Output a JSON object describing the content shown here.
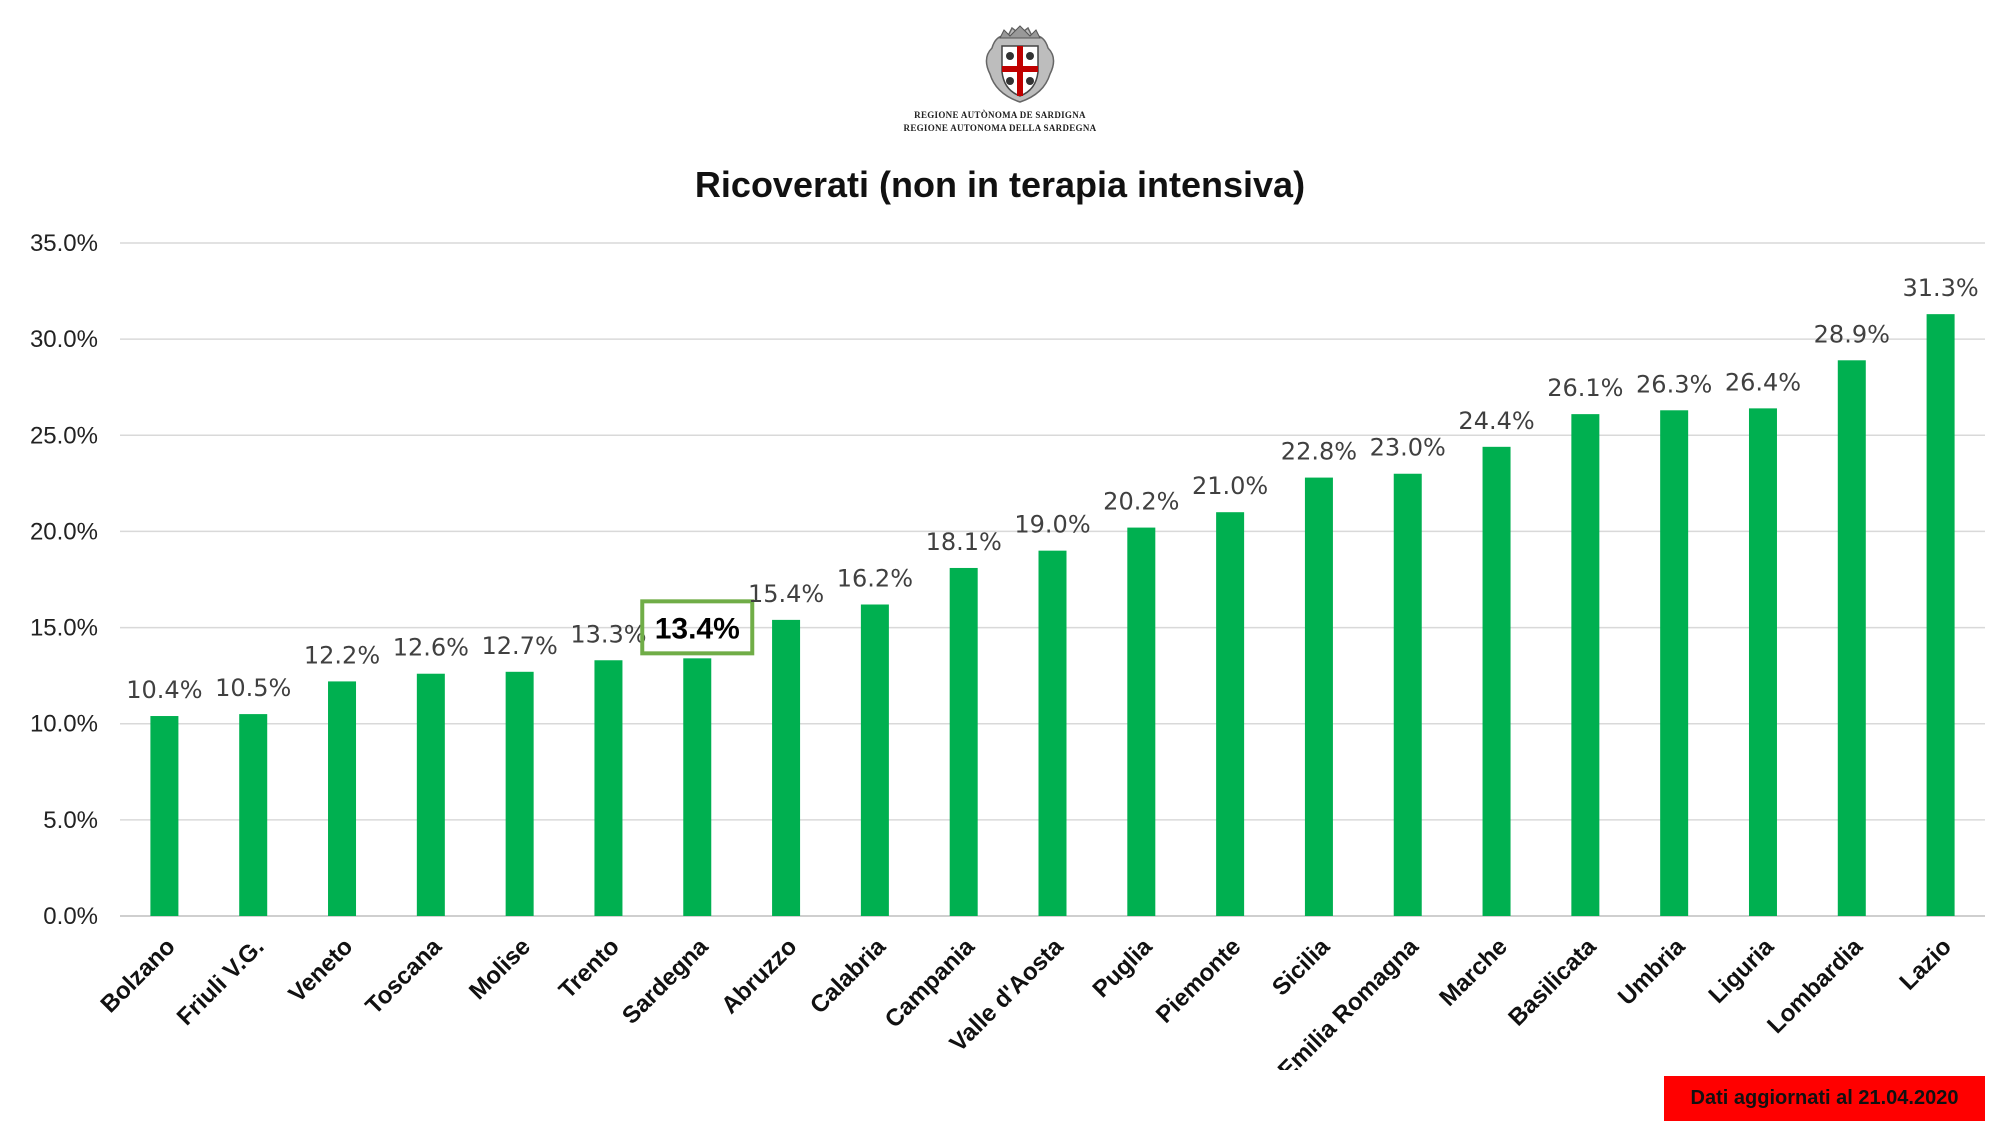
{
  "header": {
    "logo_line_1": "REGIONE AUTÒNOMA DE SARDIGNA",
    "logo_line_2": "REGIONE AUTONOMA DELLA SARDEGNA"
  },
  "footer": {
    "update_note": "Dati aggiornati al 21.04.2020"
  },
  "colors": {
    "bar": "#00b050",
    "highlight_border": "#70ad47",
    "gridline": "#d9d9d9",
    "note_background": "#ff0000"
  },
  "chart_data": {
    "type": "bar",
    "title": "Ricoverati (non in terapia intensiva)",
    "xlabel": "",
    "ylabel": "",
    "ylim": [
      0,
      35
    ],
    "y_ticks": [
      "0.0%",
      "5.0%",
      "10.0%",
      "15.0%",
      "20.0%",
      "25.0%",
      "30.0%",
      "35.0%"
    ],
    "grid": true,
    "legend": "none",
    "categories": [
      "Bolzano",
      "Friuli V.G.",
      "Veneto",
      "Toscana",
      "Molise",
      "Trento",
      "Sardegna",
      "Abruzzo",
      "Calabria",
      "Campania",
      "Valle d'Aosta",
      "Puglia",
      "Piemonte",
      "Sicilia",
      "Emilia Romagna",
      "Marche",
      "Basilicata",
      "Umbria",
      "Liguria",
      "Lombardia",
      "Lazio"
    ],
    "values": [
      10.4,
      10.5,
      12.2,
      12.6,
      12.7,
      13.3,
      13.4,
      15.4,
      16.2,
      18.1,
      19.0,
      20.2,
      21.0,
      22.8,
      23.0,
      24.4,
      26.1,
      26.3,
      26.4,
      28.9,
      31.3
    ],
    "data_labels": [
      "10.4%",
      "10.5%",
      "12.2%",
      "12.6%",
      "12.7%",
      "13.3%",
      "13.4%",
      "15.4%",
      "16.2%",
      "18.1%",
      "19.0%",
      "20.2%",
      "21.0%",
      "22.8%",
      "23.0%",
      "24.4%",
      "26.1%",
      "26.3%",
      "26.4%",
      "28.9%",
      "31.3%"
    ],
    "highlighted_category": "Sardegna"
  }
}
